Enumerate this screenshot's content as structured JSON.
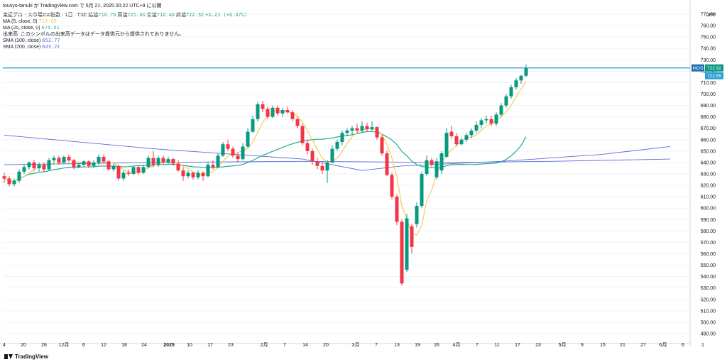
{
  "topline": "tousyo-tanuki が TradingView.com で 5月 21, 2025 00:22 UTC+9 に公開",
  "header": {
    "title": "東証グロース市場250指数 · 1日 · TSE",
    "ohlc": [
      {
        "label": "始値",
        "value": "718.70"
      },
      {
        "label": "高値",
        "value": "725.86"
      },
      {
        "label": "安値",
        "value": "718.48"
      },
      {
        "label": "終値",
        "value": "722.92"
      }
    ],
    "change": "+6.25 (+0.87%)",
    "indicators": [
      {
        "label": "MA (5, close, 0)",
        "value": "713.69",
        "color": "#f2c94c"
      },
      {
        "label": "MA (25, close, 0)",
        "value": "674.51",
        "color": "#26a69a"
      },
      {
        "label": "出来高: このシンボルの出来高データはデータ提供元から提供されておりません。",
        "value": "",
        "color": "#131722"
      },
      {
        "label": "SMA (100, close)",
        "value": "653.77",
        "color": "#5b6bd8"
      },
      {
        "label": "SMA (200, close)",
        "value": "643.21",
        "color": "#5b6bd8"
      }
    ]
  },
  "currency": "JPY",
  "brand": "TradingView",
  "colors": {
    "up": "#089981",
    "down": "#f23645",
    "ma5": "#f2c94c",
    "ma25": "#22ab94",
    "sma": "#5b6bd8",
    "hline": "#2962ff",
    "axis": "#131722",
    "grid": "#f0f3fa"
  },
  "chart_data": {
    "type": "candlestick",
    "ylim": [
      485,
      775
    ],
    "y_ticks": [
      490,
      500,
      510,
      520,
      530,
      540,
      550,
      560,
      570,
      580,
      590,
      600,
      610,
      620,
      630,
      640,
      650,
      660,
      670,
      680,
      690,
      700,
      710,
      720,
      730,
      740,
      750,
      760,
      770
    ],
    "x_ticks": [
      "4",
      "20",
      "26",
      "12月",
      "6",
      "12",
      "18",
      "24",
      "2025",
      "10",
      "17",
      "23",
      "2月",
      "7",
      "14",
      "20",
      "3月",
      "7",
      "13",
      "19",
      "26",
      "4月",
      "7",
      "11",
      "17",
      "23",
      "5月",
      "9",
      "15",
      "21",
      "27",
      "6月",
      "6",
      "1"
    ],
    "horizontal_line": {
      "label": "MOS",
      "value": 722.92
    },
    "last_price": 722.92,
    "second_price": 722.65,
    "candles": [
      {
        "o": 628,
        "h": 631,
        "l": 622,
        "c": 626
      },
      {
        "o": 626,
        "h": 628,
        "l": 619,
        "c": 621
      },
      {
        "o": 621,
        "h": 626,
        "l": 619,
        "c": 624
      },
      {
        "o": 624,
        "h": 634,
        "l": 622,
        "c": 632
      },
      {
        "o": 632,
        "h": 638,
        "l": 630,
        "c": 636
      },
      {
        "o": 636,
        "h": 641,
        "l": 634,
        "c": 640
      },
      {
        "o": 640,
        "h": 642,
        "l": 633,
        "c": 635
      },
      {
        "o": 635,
        "h": 640,
        "l": 632,
        "c": 638
      },
      {
        "o": 638,
        "h": 640,
        "l": 632,
        "c": 634
      },
      {
        "o": 634,
        "h": 644,
        "l": 633,
        "c": 642
      },
      {
        "o": 642,
        "h": 646,
        "l": 638,
        "c": 644
      },
      {
        "o": 644,
        "h": 646,
        "l": 638,
        "c": 640
      },
      {
        "o": 640,
        "h": 646,
        "l": 639,
        "c": 645
      },
      {
        "o": 645,
        "h": 647,
        "l": 640,
        "c": 642
      },
      {
        "o": 642,
        "h": 643,
        "l": 634,
        "c": 636
      },
      {
        "o": 636,
        "h": 640,
        "l": 635,
        "c": 638
      },
      {
        "o": 638,
        "h": 642,
        "l": 636,
        "c": 641
      },
      {
        "o": 641,
        "h": 642,
        "l": 635,
        "c": 637
      },
      {
        "o": 637,
        "h": 642,
        "l": 635,
        "c": 640
      },
      {
        "o": 640,
        "h": 647,
        "l": 638,
        "c": 645
      },
      {
        "o": 645,
        "h": 647,
        "l": 639,
        "c": 641
      },
      {
        "o": 641,
        "h": 642,
        "l": 633,
        "c": 634
      },
      {
        "o": 634,
        "h": 639,
        "l": 632,
        "c": 637
      },
      {
        "o": 637,
        "h": 638,
        "l": 624,
        "c": 626
      },
      {
        "o": 626,
        "h": 633,
        "l": 624,
        "c": 631
      },
      {
        "o": 631,
        "h": 634,
        "l": 628,
        "c": 630
      },
      {
        "o": 630,
        "h": 637,
        "l": 629,
        "c": 636
      },
      {
        "o": 636,
        "h": 637,
        "l": 629,
        "c": 631
      },
      {
        "o": 631,
        "h": 638,
        "l": 630,
        "c": 636
      },
      {
        "o": 636,
        "h": 646,
        "l": 635,
        "c": 644
      },
      {
        "o": 644,
        "h": 650,
        "l": 636,
        "c": 638
      },
      {
        "o": 638,
        "h": 646,
        "l": 636,
        "c": 644
      },
      {
        "o": 644,
        "h": 646,
        "l": 638,
        "c": 640
      },
      {
        "o": 640,
        "h": 645,
        "l": 639,
        "c": 643
      },
      {
        "o": 643,
        "h": 644,
        "l": 637,
        "c": 639
      },
      {
        "o": 639,
        "h": 642,
        "l": 632,
        "c": 633
      },
      {
        "o": 633,
        "h": 636,
        "l": 624,
        "c": 628
      },
      {
        "o": 628,
        "h": 633,
        "l": 626,
        "c": 631
      },
      {
        "o": 631,
        "h": 632,
        "l": 625,
        "c": 627
      },
      {
        "o": 627,
        "h": 633,
        "l": 625,
        "c": 631
      },
      {
        "o": 631,
        "h": 632,
        "l": 624,
        "c": 628
      },
      {
        "o": 628,
        "h": 640,
        "l": 627,
        "c": 638
      },
      {
        "o": 638,
        "h": 642,
        "l": 634,
        "c": 636
      },
      {
        "o": 636,
        "h": 648,
        "l": 635,
        "c": 646
      },
      {
        "o": 646,
        "h": 658,
        "l": 645,
        "c": 656
      },
      {
        "o": 656,
        "h": 660,
        "l": 650,
        "c": 652
      },
      {
        "o": 652,
        "h": 654,
        "l": 644,
        "c": 646
      },
      {
        "o": 646,
        "h": 649,
        "l": 640,
        "c": 643
      },
      {
        "o": 643,
        "h": 657,
        "l": 642,
        "c": 654
      },
      {
        "o": 654,
        "h": 670,
        "l": 653,
        "c": 667
      },
      {
        "o": 667,
        "h": 681,
        "l": 666,
        "c": 678
      },
      {
        "o": 678,
        "h": 693,
        "l": 676,
        "c": 691
      },
      {
        "o": 691,
        "h": 694,
        "l": 684,
        "c": 687
      },
      {
        "o": 687,
        "h": 689,
        "l": 678,
        "c": 680
      },
      {
        "o": 680,
        "h": 690,
        "l": 679,
        "c": 688
      },
      {
        "o": 688,
        "h": 690,
        "l": 681,
        "c": 683
      },
      {
        "o": 683,
        "h": 688,
        "l": 680,
        "c": 686
      },
      {
        "o": 686,
        "h": 689,
        "l": 683,
        "c": 684
      },
      {
        "o": 684,
        "h": 686,
        "l": 676,
        "c": 678
      },
      {
        "o": 678,
        "h": 680,
        "l": 670,
        "c": 672
      },
      {
        "o": 672,
        "h": 674,
        "l": 655,
        "c": 657
      },
      {
        "o": 657,
        "h": 660,
        "l": 647,
        "c": 650
      },
      {
        "o": 650,
        "h": 652,
        "l": 638,
        "c": 641
      },
      {
        "o": 641,
        "h": 644,
        "l": 634,
        "c": 637
      },
      {
        "o": 637,
        "h": 640,
        "l": 630,
        "c": 633
      },
      {
        "o": 633,
        "h": 642,
        "l": 622,
        "c": 640
      },
      {
        "o": 640,
        "h": 655,
        "l": 639,
        "c": 652
      },
      {
        "o": 652,
        "h": 660,
        "l": 650,
        "c": 658
      },
      {
        "o": 658,
        "h": 668,
        "l": 655,
        "c": 666
      },
      {
        "o": 666,
        "h": 670,
        "l": 663,
        "c": 668
      },
      {
        "o": 668,
        "h": 672,
        "l": 664,
        "c": 670
      },
      {
        "o": 670,
        "h": 674,
        "l": 666,
        "c": 668
      },
      {
        "o": 668,
        "h": 676,
        "l": 666,
        "c": 672
      },
      {
        "o": 672,
        "h": 675,
        "l": 667,
        "c": 669
      },
      {
        "o": 669,
        "h": 676,
        "l": 668,
        "c": 671
      },
      {
        "o": 671,
        "h": 672,
        "l": 660,
        "c": 662
      },
      {
        "o": 662,
        "h": 664,
        "l": 646,
        "c": 648
      },
      {
        "o": 648,
        "h": 650,
        "l": 628,
        "c": 629
      },
      {
        "o": 629,
        "h": 631,
        "l": 608,
        "c": 610
      },
      {
        "o": 610,
        "h": 612,
        "l": 585,
        "c": 588
      },
      {
        "o": 588,
        "h": 590,
        "l": 532,
        "c": 534
      },
      {
        "o": 546,
        "h": 595,
        "l": 544,
        "c": 591
      },
      {
        "o": 584,
        "h": 586,
        "l": 560,
        "c": 566
      },
      {
        "o": 586,
        "h": 605,
        "l": 583,
        "c": 602
      },
      {
        "o": 602,
        "h": 632,
        "l": 600,
        "c": 630
      },
      {
        "o": 630,
        "h": 646,
        "l": 628,
        "c": 642
      },
      {
        "o": 642,
        "h": 644,
        "l": 636,
        "c": 638
      },
      {
        "o": 627,
        "h": 644,
        "l": 625,
        "c": 641
      },
      {
        "o": 633,
        "h": 650,
        "l": 630,
        "c": 648
      },
      {
        "o": 645,
        "h": 670,
        "l": 644,
        "c": 666
      },
      {
        "o": 667,
        "h": 672,
        "l": 661,
        "c": 663
      },
      {
        "o": 663,
        "h": 666,
        "l": 654,
        "c": 656
      },
      {
        "o": 656,
        "h": 662,
        "l": 655,
        "c": 660
      },
      {
        "o": 660,
        "h": 666,
        "l": 658,
        "c": 664
      },
      {
        "o": 664,
        "h": 670,
        "l": 661,
        "c": 668
      },
      {
        "o": 668,
        "h": 676,
        "l": 666,
        "c": 673
      },
      {
        "o": 673,
        "h": 679,
        "l": 670,
        "c": 677
      },
      {
        "o": 677,
        "h": 681,
        "l": 674,
        "c": 678
      },
      {
        "o": 678,
        "h": 681,
        "l": 672,
        "c": 674
      },
      {
        "o": 674,
        "h": 684,
        "l": 672,
        "c": 682
      },
      {
        "o": 682,
        "h": 692,
        "l": 680,
        "c": 690
      },
      {
        "o": 690,
        "h": 700,
        "l": 688,
        "c": 698
      },
      {
        "o": 698,
        "h": 708,
        "l": 696,
        "c": 706
      },
      {
        "o": 706,
        "h": 714,
        "l": 704,
        "c": 712
      },
      {
        "o": 712,
        "h": 717,
        "l": 709,
        "c": 716
      },
      {
        "o": 716,
        "h": 726,
        "l": 715,
        "c": 723
      }
    ],
    "sma100": [
      [
        0,
        664
      ],
      [
        30,
        652
      ],
      [
        60,
        643
      ],
      [
        72,
        633
      ],
      [
        80,
        637
      ],
      [
        100,
        641
      ],
      [
        120,
        647
      ],
      [
        134,
        654
      ]
    ],
    "sma200": [
      [
        0,
        638
      ],
      [
        30,
        640
      ],
      [
        60,
        641
      ],
      [
        90,
        640
      ],
      [
        110,
        641
      ],
      [
        134,
        643
      ]
    ]
  }
}
